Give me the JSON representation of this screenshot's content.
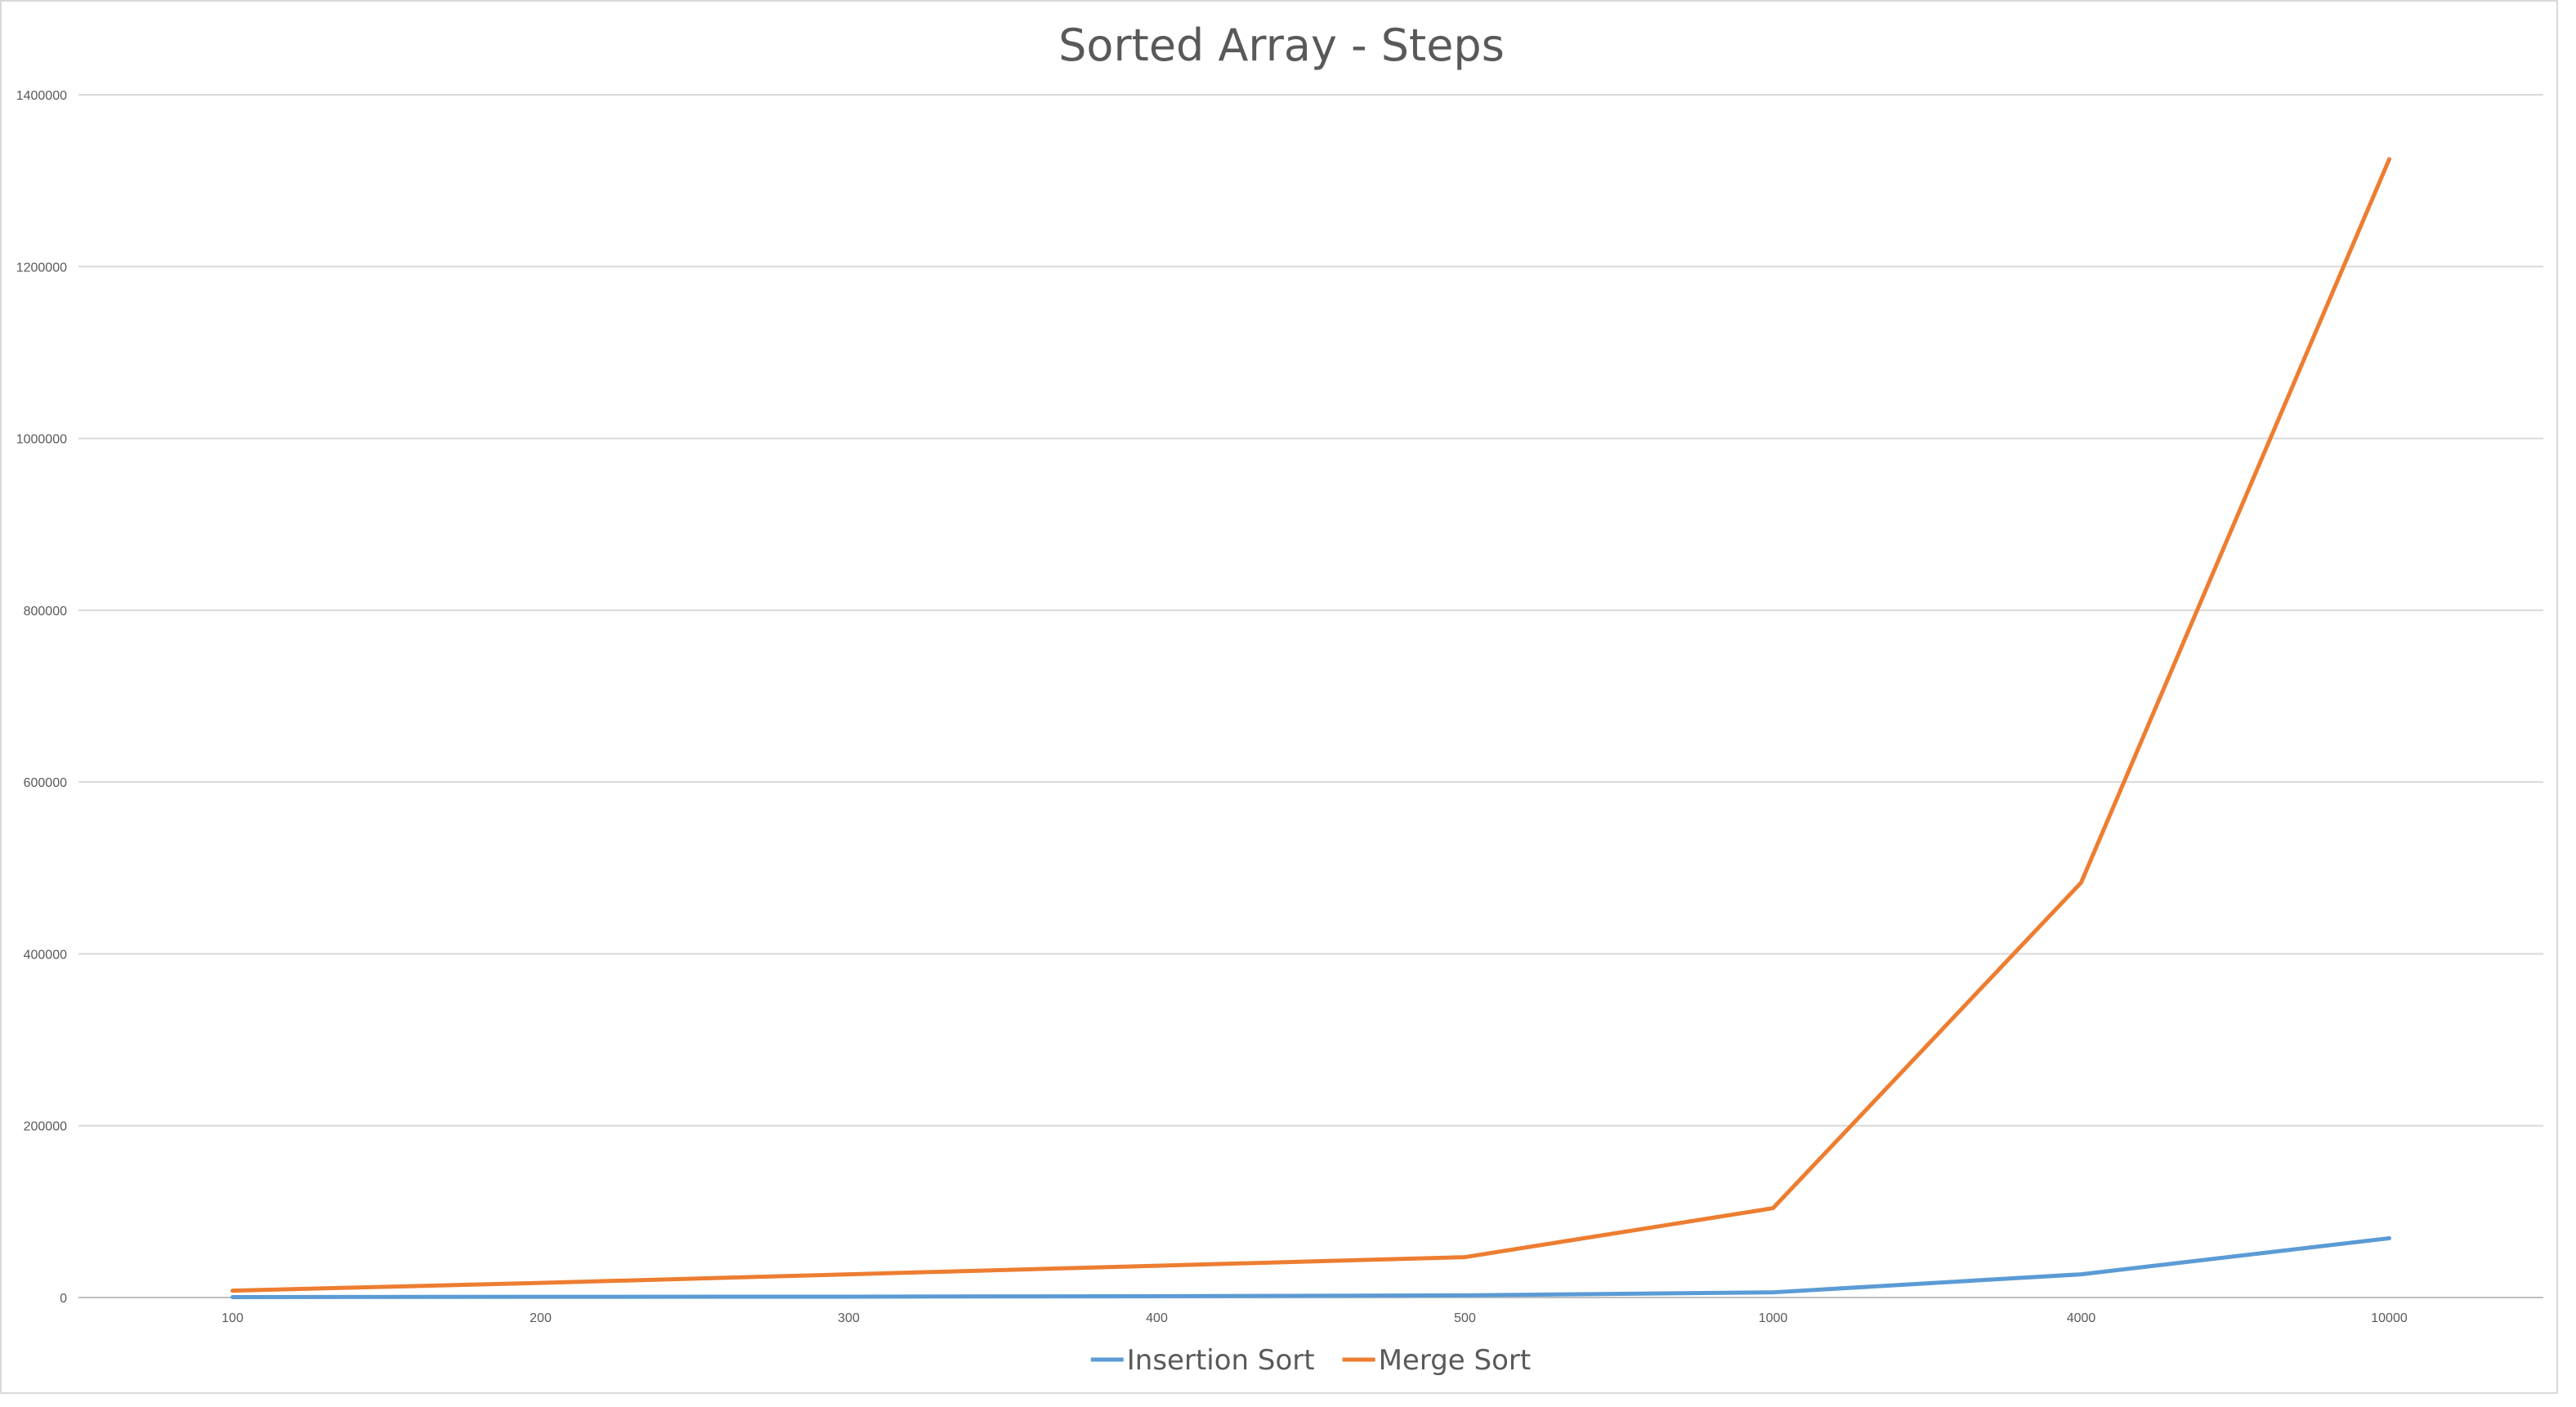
{
  "chart_data": {
    "type": "line",
    "title": "Sorted Array - Steps",
    "xlabel": "",
    "ylabel": "",
    "categories": [
      "100",
      "200",
      "300",
      "400",
      "500",
      "1000",
      "4000",
      "10000"
    ],
    "series": [
      {
        "name": "Insertion Sort",
        "color": "#5b9bd5",
        "values": [
          500,
          800,
          1000,
          1500,
          2500,
          6000,
          27000,
          69000
        ]
      },
      {
        "name": "Merge Sort",
        "color": "#ed7d31",
        "values": [
          8000,
          17000,
          27000,
          37000,
          47000,
          104000,
          483000,
          1325000
        ]
      }
    ],
    "ylim": [
      0,
      1400000
    ],
    "y_ticks": [
      0,
      200000,
      400000,
      600000,
      800000,
      1000000,
      1200000,
      1400000
    ],
    "grid": true,
    "legend_position": "bottom"
  }
}
